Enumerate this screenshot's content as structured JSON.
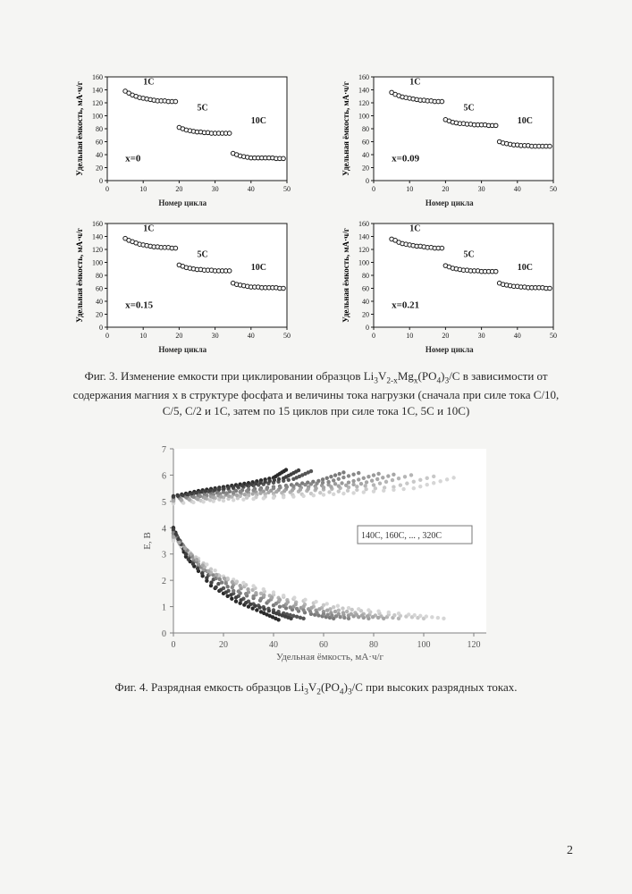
{
  "fig3": {
    "panels": [
      {
        "tag": "x=0",
        "x_axis_label": "Номер цикла",
        "y_label": "Удельная ёмкость, мА·ч/г",
        "rate_labels": [
          "1С",
          "5С",
          "10С"
        ],
        "values_1C": [
          138,
          135,
          132,
          130,
          128,
          127,
          126,
          125,
          124,
          123,
          123,
          123,
          122,
          122,
          122
        ],
        "values_5C": [
          82,
          80,
          78,
          77,
          76,
          75,
          75,
          74,
          74,
          73,
          73,
          73,
          73,
          73,
          73
        ],
        "values_10C": [
          42,
          40,
          38,
          37,
          36,
          35,
          35,
          35,
          35,
          35,
          35,
          35,
          34,
          34,
          34
        ]
      },
      {
        "tag": "x=0.09",
        "x_axis_label": "Номер цикла",
        "y_label": "Удельная ёмкость, мА·ч/г",
        "rate_labels": [
          "1С",
          "5С",
          "10С"
        ],
        "values_1C": [
          136,
          133,
          131,
          129,
          128,
          127,
          126,
          125,
          124,
          124,
          123,
          123,
          122,
          122,
          122
        ],
        "values_5C": [
          94,
          92,
          90,
          89,
          88,
          88,
          87,
          87,
          86,
          86,
          86,
          86,
          85,
          85,
          85
        ],
        "values_10C": [
          60,
          58,
          57,
          56,
          55,
          55,
          54,
          54,
          54,
          53,
          53,
          53,
          53,
          53,
          53
        ]
      },
      {
        "tag": "x=0.15",
        "x_axis_label": "Номер цикла",
        "y_label": "Удельная ёмкость, мА·ч/г",
        "rate_labels": [
          "1С",
          "5С",
          "10С"
        ],
        "values_1C": [
          137,
          134,
          132,
          130,
          128,
          127,
          126,
          125,
          124,
          124,
          123,
          123,
          123,
          122,
          122
        ],
        "values_5C": [
          96,
          94,
          92,
          91,
          90,
          89,
          89,
          88,
          88,
          88,
          87,
          87,
          87,
          87,
          87
        ],
        "values_10C": [
          68,
          66,
          65,
          64,
          63,
          62,
          62,
          62,
          61,
          61,
          61,
          61,
          61,
          60,
          60
        ]
      },
      {
        "tag": "x=0.21",
        "x_axis_label": "Номер цикла",
        "y_label": "Удельная ёмкость, мА·ч/г",
        "rate_labels": [
          "1С",
          "5С",
          "10С"
        ],
        "values_1C": [
          136,
          134,
          131,
          129,
          128,
          127,
          126,
          125,
          125,
          124,
          123,
          123,
          122,
          122,
          122
        ],
        "values_5C": [
          95,
          93,
          91,
          90,
          89,
          88,
          88,
          87,
          87,
          87,
          86,
          86,
          86,
          86,
          86
        ],
        "values_10C": [
          68,
          66,
          65,
          64,
          63,
          63,
          62,
          62,
          61,
          61,
          61,
          61,
          61,
          60,
          60
        ]
      }
    ],
    "xlim": [
      0,
      50
    ],
    "xtick_step": 10,
    "ylim": [
      0,
      160
    ],
    "ytick_step": 20,
    "marker_fill": "#ffffff",
    "marker_stroke": "#1a1a1a",
    "axis_color": "#1a1a1a",
    "grid_color": "none",
    "label_fontsize": 9,
    "tick_fontsize": 8,
    "tag_fontsize": 11,
    "background_color": "#ffffff",
    "caption": "Фиг. 3. Изменение емкости при циклировании образцов Li₃V₂₋ₓMgₓ(PO₄)₃/C в зависимости от содержания магния x в структуре фосфата и величины тока нагрузки (сначала при силе тока C/10, C/5, C/2 и 1C, затем по 15 циклов при силе тока 1C, 5C и 10C)"
  },
  "fig4": {
    "type": "scatter-lines",
    "x_label": "Удельная ёмкость, мА·ч/г",
    "y_label": "Е, В",
    "legend_text": "140С, 160С, ... , 320С",
    "xlim": [
      0,
      125
    ],
    "xtick_step": 20,
    "ylim": [
      0,
      7
    ],
    "ytick_step": 1,
    "label_fontsize": 11,
    "tick_fontsize": 10,
    "background_color": "#ffffff",
    "marker_radius": 2.2,
    "series": [
      {
        "color": "#2a2a2a",
        "charge": [
          [
            0,
            5.2
          ],
          [
            10,
            5.4
          ],
          [
            20,
            5.55
          ],
          [
            30,
            5.7
          ],
          [
            40,
            5.9
          ],
          [
            45,
            6.2
          ]
        ],
        "discharge": [
          [
            0,
            4.0
          ],
          [
            5,
            2.9
          ],
          [
            15,
            1.8
          ],
          [
            25,
            1.2
          ],
          [
            35,
            0.8
          ],
          [
            42,
            0.5
          ]
        ]
      },
      {
        "color": "#555555",
        "charge": [
          [
            0,
            5.15
          ],
          [
            12,
            5.35
          ],
          [
            24,
            5.5
          ],
          [
            36,
            5.65
          ],
          [
            48,
            5.85
          ],
          [
            55,
            6.15
          ]
        ],
        "discharge": [
          [
            0,
            3.9
          ],
          [
            8,
            2.7
          ],
          [
            20,
            1.7
          ],
          [
            32,
            1.1
          ],
          [
            44,
            0.75
          ],
          [
            52,
            0.55
          ]
        ]
      },
      {
        "color": "#7a7a7a",
        "charge": [
          [
            0,
            5.1
          ],
          [
            15,
            5.3
          ],
          [
            30,
            5.45
          ],
          [
            45,
            5.6
          ],
          [
            58,
            5.78
          ],
          [
            68,
            6.1
          ]
        ],
        "discharge": [
          [
            0,
            3.8
          ],
          [
            10,
            2.55
          ],
          [
            24,
            1.6
          ],
          [
            40,
            1.05
          ],
          [
            55,
            0.72
          ],
          [
            64,
            0.55
          ]
        ]
      },
      {
        "color": "#9a9a9a",
        "charge": [
          [
            0,
            5.05
          ],
          [
            18,
            5.22
          ],
          [
            36,
            5.38
          ],
          [
            54,
            5.55
          ],
          [
            70,
            5.72
          ],
          [
            82,
            6.05
          ]
        ],
        "discharge": [
          [
            0,
            3.7
          ],
          [
            12,
            2.4
          ],
          [
            30,
            1.55
          ],
          [
            48,
            1.0
          ],
          [
            66,
            0.72
          ],
          [
            78,
            0.55
          ]
        ]
      },
      {
        "color": "#b5b5b5",
        "charge": [
          [
            0,
            5.0
          ],
          [
            20,
            5.15
          ],
          [
            40,
            5.3
          ],
          [
            60,
            5.45
          ],
          [
            80,
            5.62
          ],
          [
            95,
            6.0
          ]
        ],
        "discharge": [
          [
            0,
            3.6
          ],
          [
            15,
            2.3
          ],
          [
            35,
            1.5
          ],
          [
            56,
            1.0
          ],
          [
            76,
            0.72
          ],
          [
            90,
            0.55
          ]
        ]
      },
      {
        "color": "#c8c8c8",
        "charge": [
          [
            0,
            4.95
          ],
          [
            22,
            5.1
          ],
          [
            44,
            5.22
          ],
          [
            66,
            5.38
          ],
          [
            88,
            5.55
          ],
          [
            104,
            5.95
          ]
        ],
        "discharge": [
          [
            0,
            3.55
          ],
          [
            18,
            2.2
          ],
          [
            40,
            1.45
          ],
          [
            64,
            0.98
          ],
          [
            86,
            0.7
          ],
          [
            100,
            0.55
          ]
        ]
      },
      {
        "color": "#d6d6d6",
        "charge": [
          [
            0,
            4.92
          ],
          [
            24,
            5.05
          ],
          [
            48,
            5.18
          ],
          [
            72,
            5.32
          ],
          [
            96,
            5.5
          ],
          [
            112,
            5.9
          ]
        ],
        "discharge": [
          [
            0,
            3.5
          ],
          [
            20,
            2.15
          ],
          [
            44,
            1.42
          ],
          [
            70,
            0.95
          ],
          [
            94,
            0.7
          ],
          [
            108,
            0.55
          ]
        ]
      },
      {
        "color": "#888888",
        "charge": [
          [
            0,
            5.08
          ],
          [
            16,
            5.26
          ],
          [
            32,
            5.42
          ],
          [
            48,
            5.58
          ],
          [
            62,
            5.74
          ],
          [
            74,
            6.08
          ]
        ],
        "discharge": [
          [
            0,
            3.78
          ],
          [
            11,
            2.5
          ],
          [
            26,
            1.58
          ],
          [
            44,
            1.02
          ],
          [
            60,
            0.72
          ],
          [
            70,
            0.55
          ]
        ]
      },
      {
        "color": "#404040",
        "charge": [
          [
            0,
            5.18
          ],
          [
            11,
            5.36
          ],
          [
            22,
            5.52
          ],
          [
            33,
            5.68
          ],
          [
            44,
            5.88
          ],
          [
            50,
            6.18
          ]
        ],
        "discharge": [
          [
            0,
            3.95
          ],
          [
            6,
            2.8
          ],
          [
            17,
            1.74
          ],
          [
            29,
            1.15
          ],
          [
            40,
            0.78
          ],
          [
            47,
            0.55
          ]
        ]
      },
      {
        "color": "#a6a6a6",
        "charge": [
          [
            0,
            5.02
          ],
          [
            19,
            5.18
          ],
          [
            38,
            5.34
          ],
          [
            57,
            5.5
          ],
          [
            75,
            5.67
          ],
          [
            88,
            6.02
          ]
        ],
        "discharge": [
          [
            0,
            3.65
          ],
          [
            14,
            2.35
          ],
          [
            33,
            1.52
          ],
          [
            52,
            1.0
          ],
          [
            71,
            0.72
          ],
          [
            84,
            0.55
          ]
        ]
      }
    ],
    "caption": "Фиг. 4. Разрядная емкость образцов Li₃V₂(PO₄)₃/C при высоких разрядных токах."
  },
  "page_number": "2"
}
